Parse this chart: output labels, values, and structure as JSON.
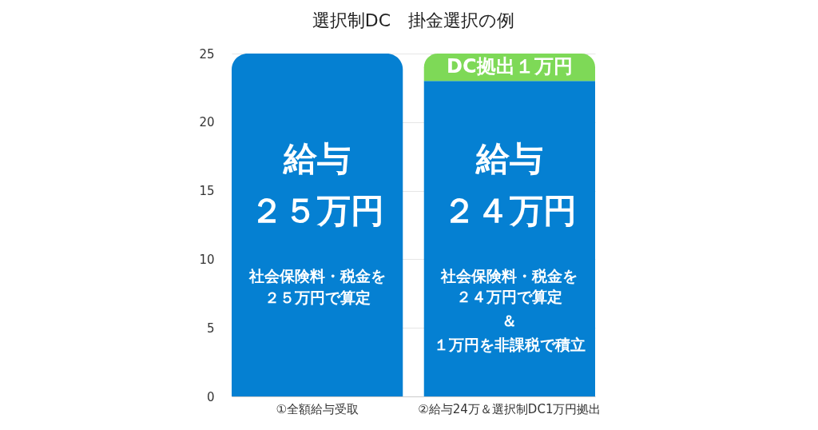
{
  "chart_data": {
    "type": "bar",
    "title": "選択制DC　掛金選択の例",
    "categories": [
      "①全額給与受取",
      "②給与24万＆選択制DC1万円拠出"
    ],
    "stacked": true,
    "series": [
      {
        "color": "#0580d2",
        "values": [
          25,
          23
        ]
      },
      {
        "color": "#7ed957",
        "values": [
          0,
          2
        ]
      }
    ],
    "ylim": [
      0,
      25
    ],
    "yticks": [
      0,
      5,
      10,
      15,
      20,
      25
    ],
    "grid": "y",
    "annotations": [
      "給与",
      "２５万円",
      "社会保険料・税金を",
      "２５万円で算定",
      "給与",
      "２４万円",
      "社会保険料・税金を",
      "２４万円で算定",
      "＆",
      "１万円を非課税で積立",
      "DC拠出１万円"
    ]
  }
}
